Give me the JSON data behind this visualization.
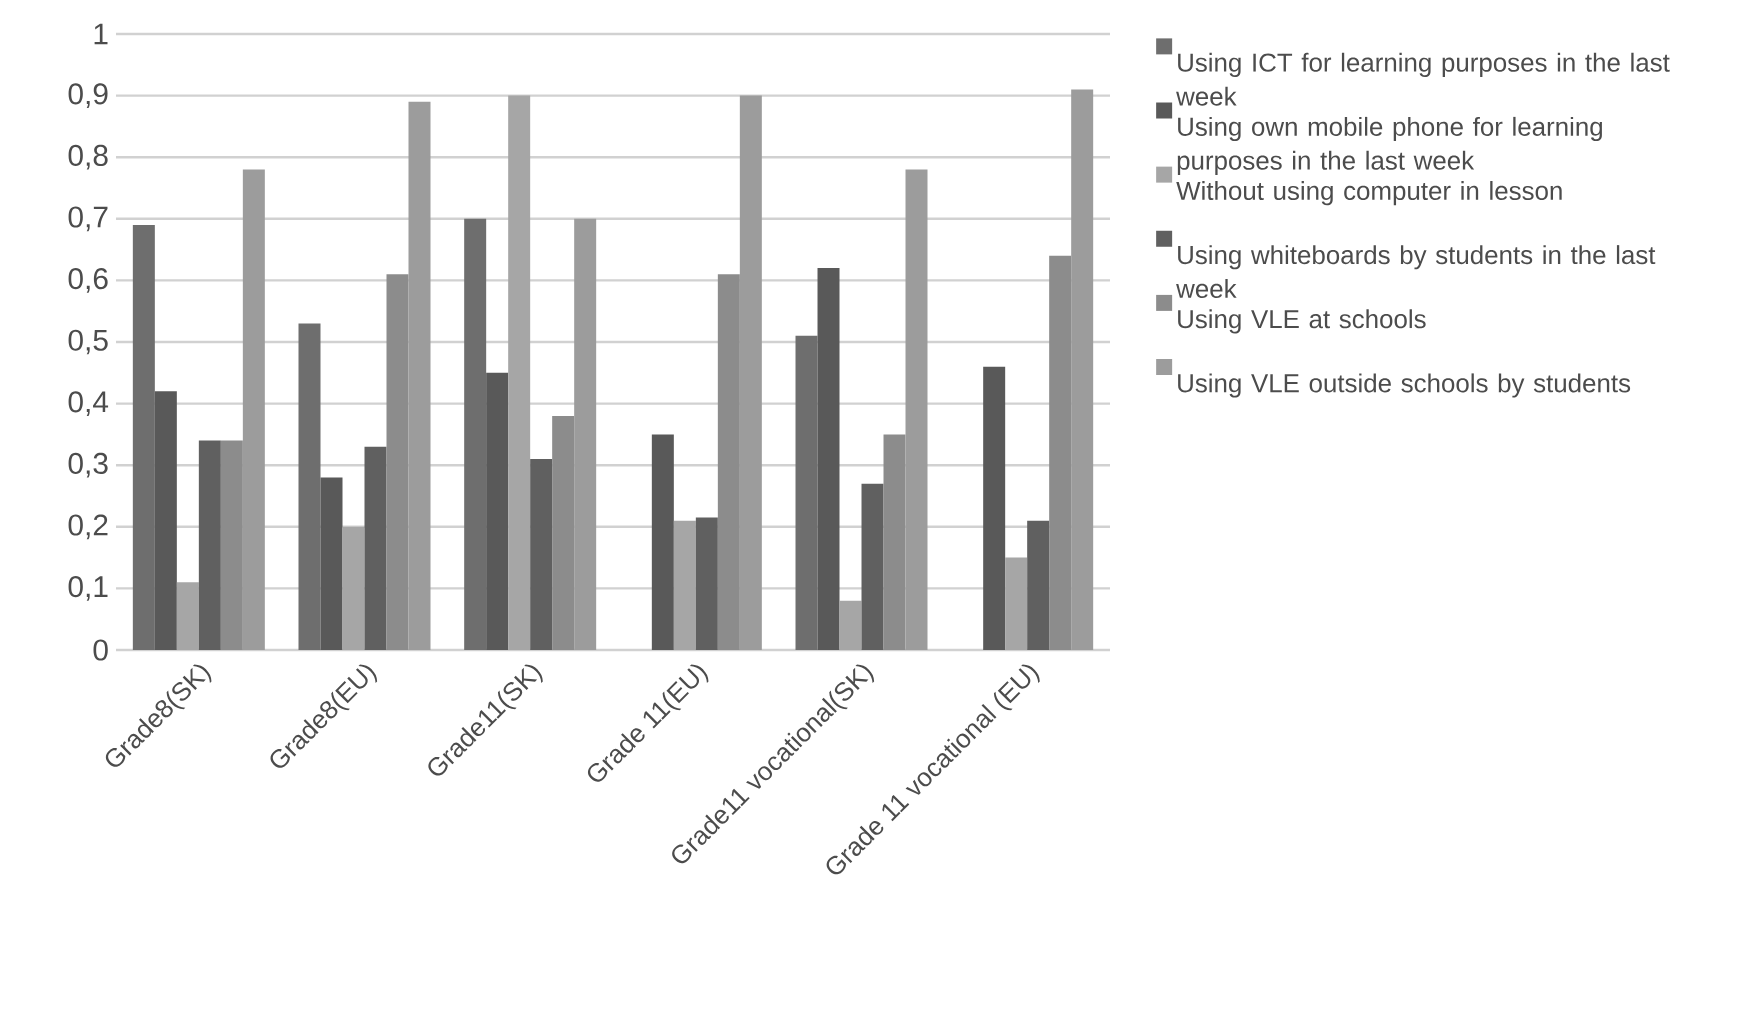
{
  "chart_data": {
    "type": "bar",
    "categories": [
      "Grade8(SK)",
      "Grade8(EU)",
      "Grade11(SK)",
      "Grade 11(EU)",
      "Grade11 vocational(SK)",
      "Grade 11 vocational (EU)"
    ],
    "series": [
      {
        "name": "Using ICT for learning purposes in the last week",
        "color": "#6e6e6e",
        "values": [
          0.69,
          0.53,
          0.7,
          null,
          0.51,
          null
        ]
      },
      {
        "name": "Using own mobile phone for learning purposes in the last week",
        "color": "#595959",
        "values": [
          0.42,
          0.28,
          0.45,
          0.35,
          0.62,
          0.46
        ]
      },
      {
        "name": "Without using computer in lesson",
        "color": "#a6a6a6",
        "values": [
          0.11,
          0.2,
          0.9,
          0.21,
          0.08,
          0.15
        ]
      },
      {
        "name": "Using whiteboards by students in the last week",
        "color": "#606060",
        "values": [
          0.34,
          0.33,
          0.31,
          0.215,
          0.27,
          0.21
        ]
      },
      {
        "name": "Using VLE at schools",
        "color": "#8c8c8c",
        "values": [
          0.34,
          0.61,
          0.38,
          0.61,
          0.35,
          0.64
        ]
      },
      {
        "name": "Using VLE outside schools by students",
        "color": "#9c9c9c",
        "values": [
          0.78,
          0.89,
          0.7,
          0.9,
          0.78,
          0.91
        ]
      }
    ],
    "ylim": [
      0,
      1
    ],
    "yticks": [
      0,
      {
        "value": 0.1,
        "label": "0,1"
      },
      {
        "value": 0.2,
        "label": "0,2"
      },
      {
        "value": 0.3,
        "label": "0,3"
      },
      {
        "value": 0.4,
        "label": "0,4"
      },
      {
        "value": 0.5,
        "label": "0,5"
      },
      {
        "value": 0.6,
        "label": "0,6"
      },
      {
        "value": 0.7,
        "label": "0,7"
      },
      {
        "value": 0.8,
        "label": "0,8"
      },
      {
        "value": 0.9,
        "label": "0,9"
      },
      1
    ],
    "grid": "y",
    "legend": "right"
  }
}
